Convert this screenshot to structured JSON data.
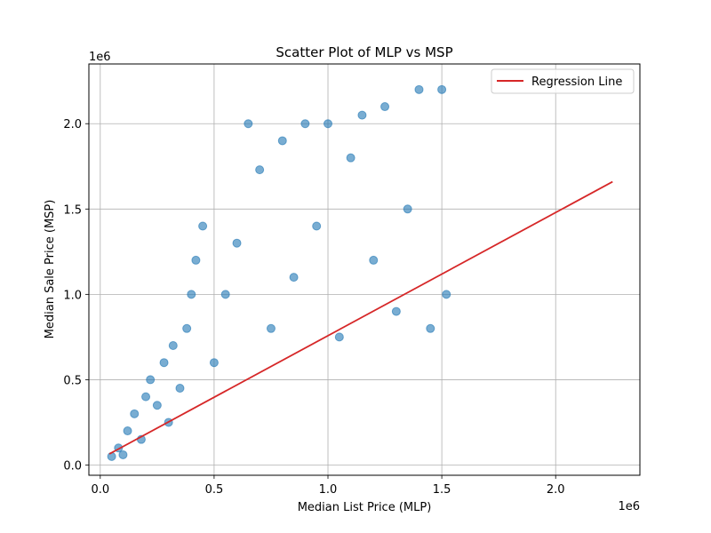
{
  "chart_data": {
    "type": "scatter",
    "title": "Scatter Plot of MLP vs MSP",
    "xlabel": "Median List Price (MLP)",
    "ylabel": "Median Sale Price (MSP)",
    "x_offset_text": "1e6",
    "y_offset_text": "1e6",
    "xlim": [
      -0.05,
      2.37
    ],
    "ylim": [
      -0.06,
      2.35
    ],
    "xticks": [
      0.0,
      0.5,
      1.0,
      1.5,
      2.0
    ],
    "yticks": [
      0.0,
      0.5,
      1.0,
      1.5,
      2.0
    ],
    "xtick_labels": [
      "0.0",
      "0.5",
      "1.0",
      "1.5",
      "2.0"
    ],
    "ytick_labels": [
      "0.0",
      "0.5",
      "1.0",
      "1.5",
      "2.0"
    ],
    "grid": true,
    "legend_placement": "top-right",
    "series": [
      {
        "name": "",
        "kind": "scatter",
        "color": "#1f77b4",
        "points": [
          [
            0.05,
            0.05
          ],
          [
            0.08,
            0.1
          ],
          [
            0.1,
            0.06
          ],
          [
            0.12,
            0.2
          ],
          [
            0.15,
            0.3
          ],
          [
            0.18,
            0.15
          ],
          [
            0.2,
            0.4
          ],
          [
            0.22,
            0.5
          ],
          [
            0.25,
            0.35
          ],
          [
            0.28,
            0.6
          ],
          [
            0.3,
            0.25
          ],
          [
            0.32,
            0.7
          ],
          [
            0.35,
            0.45
          ],
          [
            0.38,
            0.8
          ],
          [
            0.4,
            1.0
          ],
          [
            0.42,
            1.2
          ],
          [
            0.45,
            1.4
          ],
          [
            0.5,
            0.6
          ],
          [
            0.55,
            1.0
          ],
          [
            0.6,
            1.3
          ],
          [
            0.65,
            2.0
          ],
          [
            0.7,
            1.73
          ],
          [
            0.75,
            0.8
          ],
          [
            0.8,
            1.9
          ],
          [
            0.85,
            1.1
          ],
          [
            0.9,
            2.0
          ],
          [
            0.95,
            1.4
          ],
          [
            1.0,
            2.0
          ],
          [
            1.05,
            0.75
          ],
          [
            1.1,
            1.8
          ],
          [
            1.15,
            2.05
          ],
          [
            1.2,
            1.2
          ],
          [
            1.25,
            2.1
          ],
          [
            1.3,
            0.9
          ],
          [
            1.35,
            1.5
          ],
          [
            1.4,
            2.2
          ],
          [
            1.45,
            0.8
          ],
          [
            1.5,
            2.2
          ],
          [
            1.52,
            1.0
          ]
        ]
      },
      {
        "name": "Regression Line",
        "kind": "line",
        "color": "#d62728",
        "points": [
          [
            0.04,
            0.065
          ],
          [
            2.25,
            1.66
          ]
        ]
      }
    ]
  }
}
